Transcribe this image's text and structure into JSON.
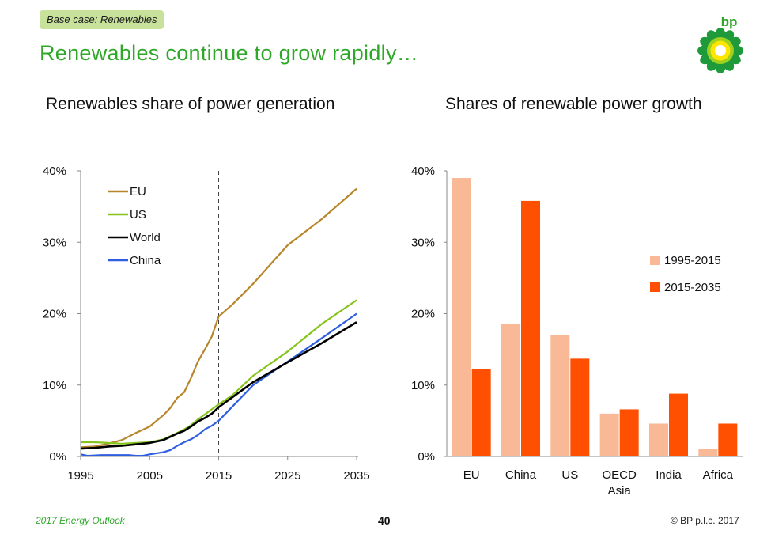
{
  "header": {
    "badge": "Base case: Renewables",
    "title": "Renewables continue to grow rapidly…",
    "logo_text": "bp"
  },
  "footer": {
    "left": "2017 Energy Outlook",
    "page": "40",
    "right": "© BP p.l.c. 2017"
  },
  "colors": {
    "EU_line": "#b8862a",
    "US_line": "#86c41c",
    "World_line": "#000000",
    "China_line": "#2f5fe0",
    "bar_1995_2015": "#f9b896",
    "bar_2015_2035": "#ff4f00",
    "title_green": "#2fa82a"
  },
  "chart_data": [
    {
      "type": "line",
      "title": "Renewables share of power generation",
      "xlabel": "",
      "ylabel": "",
      "xlim": [
        1995,
        2035
      ],
      "ylim": [
        0,
        40
      ],
      "x_ticks": [
        "1995",
        "2005",
        "2015",
        "2025",
        "2035"
      ],
      "y_ticks": [
        "0%",
        "10%",
        "20%",
        "30%",
        "40%"
      ],
      "vertical_marker": 2015,
      "legend_position": "top-left",
      "series": [
        {
          "name": "EU",
          "points": [
            [
              1995,
              1.3
            ],
            [
              1997,
              1.4
            ],
            [
              1999,
              1.8
            ],
            [
              2001,
              2.3
            ],
            [
              2003,
              3.3
            ],
            [
              2005,
              4.2
            ],
            [
              2006,
              5.0
            ],
            [
              2007,
              5.8
            ],
            [
              2008,
              6.8
            ],
            [
              2009,
              8.2
            ],
            [
              2010,
              9.0
            ],
            [
              2011,
              11.0
            ],
            [
              2012,
              13.3
            ],
            [
              2013,
              15.0
            ],
            [
              2014,
              16.8
            ],
            [
              2015,
              19.6
            ],
            [
              2017,
              21.3
            ],
            [
              2020,
              24.2
            ],
            [
              2025,
              29.6
            ],
            [
              2030,
              33.3
            ],
            [
              2035,
              37.5
            ]
          ]
        },
        {
          "name": "US",
          "points": [
            [
              1995,
              2.0
            ],
            [
              1997,
              2.0
            ],
            [
              1999,
              1.9
            ],
            [
              2001,
              1.8
            ],
            [
              2003,
              1.9
            ],
            [
              2005,
              2.0
            ],
            [
              2007,
              2.4
            ],
            [
              2009,
              3.3
            ],
            [
              2010,
              3.8
            ],
            [
              2011,
              4.4
            ],
            [
              2012,
              5.2
            ],
            [
              2013,
              5.9
            ],
            [
              2014,
              6.6
            ],
            [
              2015,
              7.3
            ],
            [
              2017,
              8.6
            ],
            [
              2020,
              11.3
            ],
            [
              2025,
              14.7
            ],
            [
              2030,
              18.6
            ],
            [
              2035,
              21.9
            ]
          ]
        },
        {
          "name": "World",
          "points": [
            [
              1995,
              1.1
            ],
            [
              1997,
              1.2
            ],
            [
              1999,
              1.4
            ],
            [
              2001,
              1.5
            ],
            [
              2003,
              1.7
            ],
            [
              2005,
              1.9
            ],
            [
              2007,
              2.3
            ],
            [
              2009,
              3.2
            ],
            [
              2010,
              3.6
            ],
            [
              2011,
              4.2
            ],
            [
              2012,
              4.9
            ],
            [
              2013,
              5.4
            ],
            [
              2014,
              6.0
            ],
            [
              2015,
              6.9
            ],
            [
              2017,
              8.3
            ],
            [
              2020,
              10.4
            ],
            [
              2025,
              13.2
            ],
            [
              2030,
              15.9
            ],
            [
              2035,
              18.8
            ]
          ]
        },
        {
          "name": "China",
          "points": [
            [
              1995,
              0.3
            ],
            [
              1996,
              0.1
            ],
            [
              1998,
              0.2
            ],
            [
              2000,
              0.2
            ],
            [
              2002,
              0.2
            ],
            [
              2003,
              0.1
            ],
            [
              2004,
              0.1
            ],
            [
              2005,
              0.3
            ],
            [
              2007,
              0.6
            ],
            [
              2008,
              0.9
            ],
            [
              2009,
              1.5
            ],
            [
              2010,
              2.0
            ],
            [
              2011,
              2.4
            ],
            [
              2012,
              3.0
            ],
            [
              2013,
              3.8
            ],
            [
              2014,
              4.3
            ],
            [
              2015,
              5.0
            ],
            [
              2017,
              7.0
            ],
            [
              2020,
              10.0
            ],
            [
              2025,
              13.3
            ],
            [
              2030,
              16.6
            ],
            [
              2035,
              20.0
            ]
          ]
        }
      ]
    },
    {
      "type": "bar",
      "title": "Shares of renewable power growth",
      "xlabel": "",
      "ylabel": "",
      "ylim": [
        0,
        40
      ],
      "y_ticks": [
        "0%",
        "10%",
        "20%",
        "30%",
        "40%"
      ],
      "categories": [
        "EU",
        "China",
        "US",
        "OECD Asia",
        "India",
        "Africa"
      ],
      "legend_position": "right",
      "series": [
        {
          "name": "1995-2015",
          "values": [
            39.0,
            18.6,
            17.0,
            6.0,
            4.6,
            1.1
          ]
        },
        {
          "name": "2015-2035",
          "values": [
            12.2,
            35.8,
            13.7,
            6.6,
            8.8,
            4.6
          ]
        }
      ]
    }
  ]
}
